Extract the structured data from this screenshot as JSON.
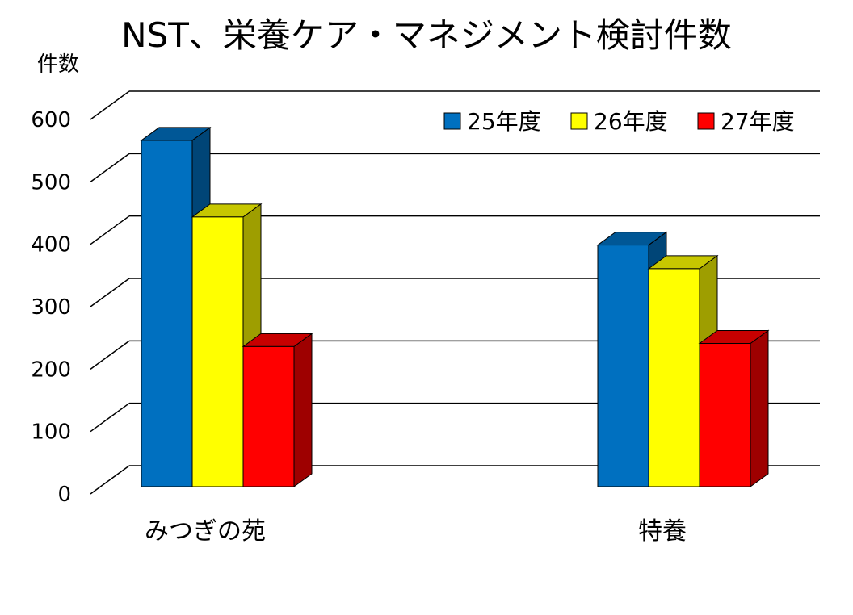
{
  "chart_data": {
    "type": "bar",
    "title": "NST、栄養ケア・マネジメント検討件数",
    "ylabel": "件数",
    "xlabel": "",
    "categories": [
      "みつぎの苑",
      "特養"
    ],
    "series": [
      {
        "name": "25年度",
        "values": [
          556,
          388
        ],
        "color": "#0070C0"
      },
      {
        "name": "26年度",
        "values": [
          433,
          350
        ],
        "color": "#FFFF00"
      },
      {
        "name": "27年度",
        "values": [
          225,
          230
        ],
        "color": "#FF0000"
      }
    ],
    "ylim": [
      0,
      600
    ],
    "yticks": [
      "0",
      "100",
      "200",
      "300",
      "400",
      "500",
      "600"
    ],
    "grid": true,
    "legend_position": "top-right",
    "style": "3d-clustered-column"
  }
}
